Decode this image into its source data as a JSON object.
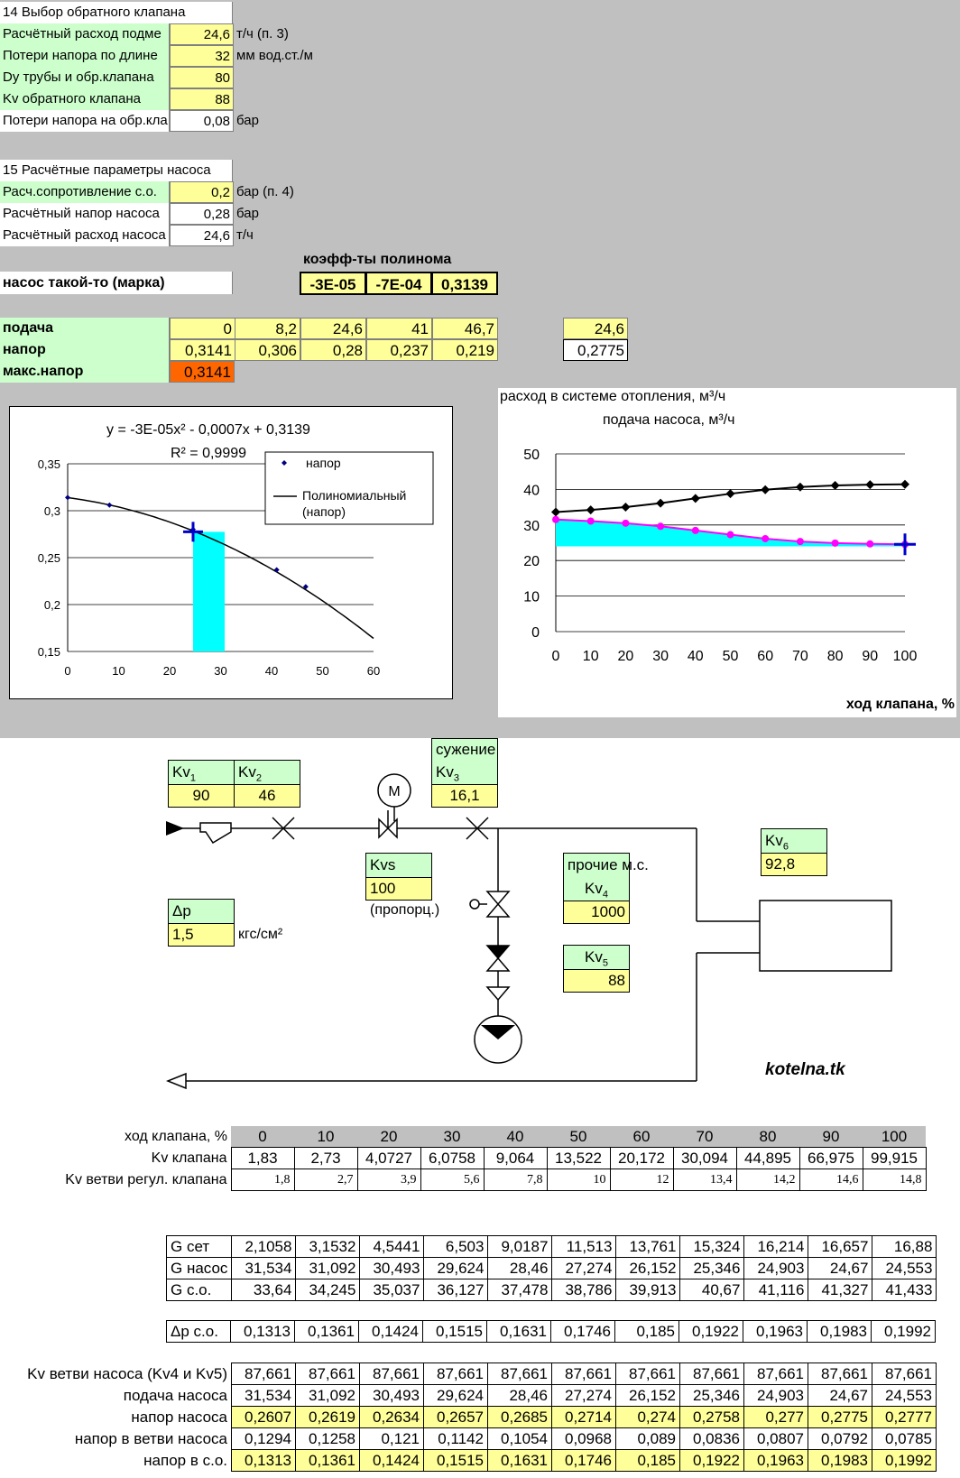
{
  "sec14": {
    "title": "14 Выбор обратного клапана",
    "rows": [
      {
        "label": "Расчётный расход подме",
        "value": "24,6",
        "unit": "т/ч (п. 3)"
      },
      {
        "label": "Потери напора по длине",
        "value": "32",
        "unit": "мм вод.ст./м"
      },
      {
        "label": "Dy трубы и обр.клапана",
        "value": "80",
        "unit": ""
      },
      {
        "label": "Kv обратного клапана",
        "value": "88",
        "unit": ""
      },
      {
        "label": "Потери напора на обр.кла",
        "value": "0,08",
        "unit": "бар"
      }
    ]
  },
  "sec15": {
    "title": "15 Расчётные параметры насоса",
    "rows": [
      {
        "label": "Расч.сопротивление с.о.",
        "value": "0,2",
        "unit": "бар (п. 4)"
      },
      {
        "label": "Расчётный напор насоса",
        "value": "0,28",
        "unit": "бар"
      },
      {
        "label": "Расчётный расход насоса",
        "value": "24,6",
        "unit": "т/ч"
      }
    ]
  },
  "pump": {
    "coef_title": "коэфф-ты полинома",
    "name": "насос такой-то (марка)",
    "coefs": [
      "-3E-05",
      "-7E-04",
      "0,3139"
    ],
    "supply_label": "подача",
    "supply": [
      "0",
      "8,2",
      "24,6",
      "41",
      "46,7"
    ],
    "supply_extra": "24,6",
    "head_label": "напор",
    "head": [
      "0,3141",
      "0,306",
      "0,28",
      "0,237",
      "0,219"
    ],
    "head_extra": "0,2775",
    "max_label": "макс.напор",
    "max_value": "0,3141"
  },
  "chart1": {
    "equation": "y = -3E-05x² - 0,0007x + 0,3139",
    "r2": "R² = 0,9999",
    "legend_points": "напор",
    "legend_line1": "Полиномиальный",
    "legend_line2": "(напор)",
    "yticks": [
      "0,35",
      "0,3",
      "0,25",
      "0,2",
      "0,15"
    ],
    "xticks": [
      "0",
      "10",
      "20",
      "30",
      "40",
      "50",
      "60"
    ]
  },
  "chart2": {
    "title1": "расход в системе отопления, м³/ч",
    "title2": "подача насоса, м³/ч",
    "xlabel": "ход клапана, %",
    "yticks": [
      "50",
      "40",
      "30",
      "20",
      "10",
      "0"
    ],
    "xticks": [
      "0",
      "10",
      "20",
      "30",
      "40",
      "50",
      "60",
      "70",
      "80",
      "90",
      "100"
    ]
  },
  "chart_data": [
    {
      "type": "scatter",
      "title": "y = -3E-05x² - 0,0007x + 0,3139",
      "series": [
        {
          "name": "напор",
          "x": [
            0,
            8.2,
            24.6,
            41,
            46.7
          ],
          "y": [
            0.3141,
            0.306,
            0.28,
            0.237,
            0.219
          ]
        },
        {
          "name": "Полиномиальный (напор)",
          "coefs": [
            -3e-05,
            -0.0007,
            0.3139
          ]
        }
      ],
      "xlim": [
        0,
        60
      ],
      "ylim": [
        0.15,
        0.35
      ],
      "marker_x": 24.6,
      "marker_y": 0.2775,
      "shade_x": [
        24.6,
        30.8
      ]
    },
    {
      "type": "line",
      "x": [
        0,
        10,
        20,
        30,
        40,
        50,
        60,
        70,
        80,
        90,
        100
      ],
      "series": [
        {
          "name": "расход в системе отопления, м³/ч",
          "color": "#000000",
          "values": [
            33.64,
            34.245,
            35.037,
            36.127,
            37.478,
            38.786,
            39.913,
            40.67,
            41.116,
            41.327,
            41.433
          ]
        },
        {
          "name": "подача насоса, м³/ч",
          "color": "#ff00ff",
          "values": [
            31.534,
            31.092,
            30.493,
            29.624,
            28.46,
            27.274,
            26.152,
            25.346,
            24.903,
            24.67,
            24.553
          ]
        }
      ],
      "xlabel": "ход клапана, %",
      "ylim": [
        0,
        50
      ],
      "shade_base": 24
    }
  ],
  "diagram": {
    "kv1_label": "Kv1",
    "kv1_sub": "1",
    "kv1_value": "90",
    "kv2_label": "Kv",
    "kv2_sub": "2",
    "kv2_value": "46",
    "narrow_label": "сужение",
    "kv3_label": "Kv",
    "kv3_sub": "3",
    "kv3_value": "16,1",
    "kvs_label": "Kvs",
    "kvs_value": "100",
    "kvs_note": "(пропорц.)",
    "other_label": "прочие м.с.",
    "kv4_label": "Kv",
    "kv4_sub": "4",
    "kv4_value": "1000",
    "kv5_label": "Kv",
    "kv5_sub": "5",
    "kv5_value": "88",
    "kv6_label": "Kv",
    "kv6_sub": "6",
    "kv6_value": "92,8",
    "dp_label": "Δр",
    "dp_value": "1,5",
    "dp_unit": "кгс/см²",
    "motor_letter": "М",
    "brand": "kotelna.tk"
  },
  "table1": {
    "header_label": "ход клапана, %",
    "header": [
      "0",
      "10",
      "20",
      "30",
      "40",
      "50",
      "60",
      "70",
      "80",
      "90",
      "100"
    ],
    "kv_label": "Kv клапана",
    "kv": [
      "1,83",
      "2,73",
      "4,0727",
      "6,0758",
      "9,064",
      "13,522",
      "20,172",
      "30,094",
      "44,895",
      "66,975",
      "99,915"
    ],
    "kvb_label": "Kv ветви регул. клапана",
    "kvb": [
      "1,8",
      "2,7",
      "3,9",
      "5,6",
      "7,8",
      "10",
      "12",
      "13,4",
      "14,2",
      "14,6",
      "14,8"
    ]
  },
  "table2": {
    "rows": [
      {
        "label": "G сет",
        "vals": [
          "2,1058",
          "3,1532",
          "4,5441",
          "6,503",
          "9,0187",
          "11,513",
          "13,761",
          "15,324",
          "16,214",
          "16,657",
          "16,88"
        ]
      },
      {
        "label": "G насос",
        "vals": [
          "31,534",
          "31,092",
          "30,493",
          "29,624",
          "28,46",
          "27,274",
          "26,152",
          "25,346",
          "24,903",
          "24,67",
          "24,553"
        ]
      },
      {
        "label": "G с.о.",
        "vals": [
          "33,64",
          "34,245",
          "35,037",
          "36,127",
          "37,478",
          "38,786",
          "39,913",
          "40,67",
          "41,116",
          "41,327",
          "41,433"
        ]
      }
    ],
    "dp_label": "Δр с.о.",
    "dp": [
      "0,1313",
      "0,1361",
      "0,1424",
      "0,1515",
      "0,1631",
      "0,1746",
      "0,185",
      "0,1922",
      "0,1963",
      "0,1983",
      "0,1992"
    ]
  },
  "table3": {
    "rows": [
      {
        "label": "Kv ветви насоса (Kv4 и Kv5)",
        "vals": [
          "87,661",
          "87,661",
          "87,661",
          "87,661",
          "87,661",
          "87,661",
          "87,661",
          "87,661",
          "87,661",
          "87,661",
          "87,661"
        ],
        "yellow": false
      },
      {
        "label": "подача насоса",
        "vals": [
          "31,534",
          "31,092",
          "30,493",
          "29,624",
          "28,46",
          "27,274",
          "26,152",
          "25,346",
          "24,903",
          "24,67",
          "24,553"
        ],
        "yellow": false
      },
      {
        "label": "напор насоса",
        "vals": [
          "0,2607",
          "0,2619",
          "0,2634",
          "0,2657",
          "0,2685",
          "0,2714",
          "0,274",
          "0,2758",
          "0,277",
          "0,2775",
          "0,2777"
        ],
        "yellow": true
      },
      {
        "label": "напор в ветви насоса",
        "vals": [
          "0,1294",
          "0,1258",
          "0,121",
          "0,1142",
          "0,1054",
          "0,0968",
          "0,089",
          "0,0836",
          "0,0807",
          "0,0792",
          "0,0785"
        ],
        "yellow": false
      },
      {
        "label": "напор в с.о.",
        "vals": [
          "0,1313",
          "0,1361",
          "0,1424",
          "0,1515",
          "0,1631",
          "0,1746",
          "0,185",
          "0,1922",
          "0,1963",
          "0,1983",
          "0,1992"
        ],
        "yellow": true
      }
    ]
  }
}
